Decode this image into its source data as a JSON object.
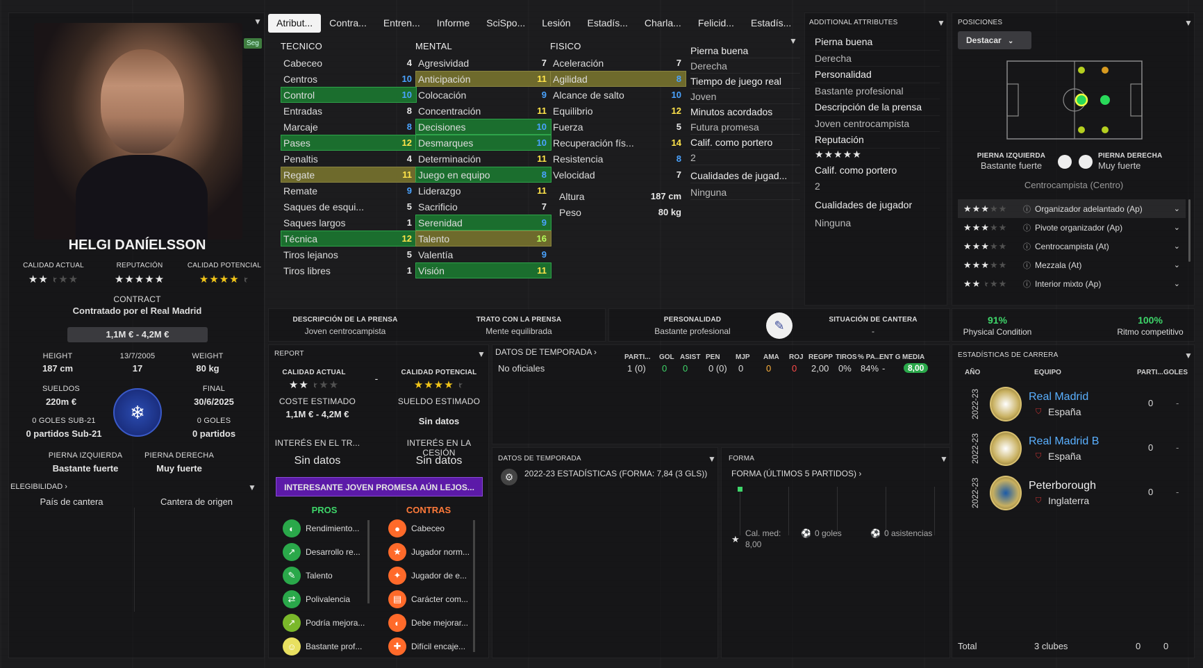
{
  "player": {
    "name": "HELGI DANÍELSSON",
    "tag": "Seg",
    "labels": {
      "current": "CALIDAD ACTUAL",
      "reputation": "REPUTACIÓN",
      "potential": "CALIDAD POTENCIAL"
    },
    "current_ability_stars": 2.5,
    "reputation_stars": 5,
    "potential_ability_stars": 4.5,
    "contract_label": "CONTRACT",
    "contract_text": "Contratado por el Real Madrid",
    "value": "1,1M € - 4,2M €",
    "height_label": "HEIGHT",
    "height": "187 cm",
    "dob_label": "13/7/2005",
    "age": "17",
    "weight_label": "WEIGHT",
    "weight": "80 kg",
    "wage_label": "SUELDOS",
    "wage": "220m €",
    "end_label": "FINAL",
    "end": "30/6/2025",
    "u21_goals": "0 GOLES SUB-21",
    "u21_apps": "0 partidos Sub-21",
    "goals": "0 GOLES",
    "apps": "0 partidos",
    "left_foot_label": "PIERNA IZQUIERDA",
    "left_foot": "Bastante fuerte",
    "right_foot_label": "PIERNA DERECHA",
    "right_foot": "Muy fuerte",
    "eligibility": "ELEGIBILIDAD",
    "eligibility_a": "País de cantera",
    "eligibility_b": "Cantera de origen"
  },
  "tabs": [
    "Atribut...",
    "Contra...",
    "Entren...",
    "Informe",
    "SciSpo...",
    "Lesión",
    "Estadís...",
    "Charla...",
    "Felicid...",
    "Estadís..."
  ],
  "attributes": {
    "tecnico": {
      "title": "TECNICO",
      "rows": [
        {
          "n": "Cabeceo",
          "v": "4",
          "h": "",
          "c": ""
        },
        {
          "n": "Centros",
          "v": "10",
          "h": "",
          "c": "b"
        },
        {
          "n": "Control",
          "v": "10",
          "h": "g",
          "c": "b"
        },
        {
          "n": "Entradas",
          "v": "8",
          "h": "",
          "c": ""
        },
        {
          "n": "Marcaje",
          "v": "8",
          "h": "",
          "c": "b"
        },
        {
          "n": "Pases",
          "v": "12",
          "h": "g",
          "c": "yy"
        },
        {
          "n": "Penaltis",
          "v": "4",
          "h": "",
          "c": ""
        },
        {
          "n": "Regate",
          "v": "11",
          "h": "y",
          "c": "yy"
        },
        {
          "n": "Remate",
          "v": "9",
          "h": "",
          "c": "b"
        },
        {
          "n": "Saques de esqui...",
          "v": "5",
          "h": "",
          "c": ""
        },
        {
          "n": "Saques largos",
          "v": "1",
          "h": "",
          "c": ""
        },
        {
          "n": "Técnica",
          "v": "12",
          "h": "g",
          "c": "yy"
        },
        {
          "n": "Tiros lejanos",
          "v": "5",
          "h": "",
          "c": ""
        },
        {
          "n": "Tiros libres",
          "v": "1",
          "h": "",
          "c": ""
        }
      ]
    },
    "mental": {
      "title": "MENTAL",
      "rows": [
        {
          "n": "Agresividad",
          "v": "7",
          "h": "",
          "c": ""
        },
        {
          "n": "Anticipación",
          "v": "11",
          "h": "y",
          "c": "yy"
        },
        {
          "n": "Colocación",
          "v": "9",
          "h": "",
          "c": "b"
        },
        {
          "n": "Concentración",
          "v": "11",
          "h": "",
          "c": "yy"
        },
        {
          "n": "Decisiones",
          "v": "10",
          "h": "g",
          "c": "b"
        },
        {
          "n": "Desmarques",
          "v": "10",
          "h": "g",
          "c": "b"
        },
        {
          "n": "Determinación",
          "v": "11",
          "h": "",
          "c": "yy"
        },
        {
          "n": "Juego en equipo",
          "v": "8",
          "h": "g",
          "c": "b"
        },
        {
          "n": "Liderazgo",
          "v": "11",
          "h": "",
          "c": "yy"
        },
        {
          "n": "Sacrificio",
          "v": "7",
          "h": "",
          "c": ""
        },
        {
          "n": "Serenidad",
          "v": "9",
          "h": "g",
          "c": "b"
        },
        {
          "n": "Talento",
          "v": "16",
          "h": "y",
          "c": "gg"
        },
        {
          "n": "Valentía",
          "v": "9",
          "h": "",
          "c": "b"
        },
        {
          "n": "Visión",
          "v": "11",
          "h": "g",
          "c": "yy"
        }
      ]
    },
    "fisico": {
      "title": "FISICO",
      "rows": [
        {
          "n": "Aceleración",
          "v": "7",
          "h": "",
          "c": ""
        },
        {
          "n": "Agilidad",
          "v": "8",
          "h": "y",
          "c": "b"
        },
        {
          "n": "Alcance de salto",
          "v": "10",
          "h": "",
          "c": "b"
        },
        {
          "n": "Equilibrio",
          "v": "12",
          "h": "",
          "c": "yy"
        },
        {
          "n": "Fuerza",
          "v": "5",
          "h": "",
          "c": ""
        },
        {
          "n": "Recuperación fís...",
          "v": "14",
          "h": "",
          "c": "yy"
        },
        {
          "n": "Resistencia",
          "v": "8",
          "h": "",
          "c": "b"
        },
        {
          "n": "Velocidad",
          "v": "7",
          "h": "",
          "c": ""
        }
      ]
    },
    "height_label": "Altura",
    "height": "187 cm",
    "weight_label": "Peso",
    "weight": "80 kg"
  },
  "side_info": {
    "items": [
      "Pierna buena",
      "Derecha",
      "Tiempo de juego real",
      "Joven",
      "Minutos acordados",
      "Futura promesa",
      "Calif. como portero",
      "2",
      "Cualidades de jugad...",
      "Ninguna"
    ]
  },
  "additional": {
    "title": "ADDITIONAL ATTRIBUTES",
    "items": [
      "Pierna buena",
      "Derecha",
      "Personalidad",
      "Bastante profesional",
      "Descripción de la prensa",
      "Joven centrocampista",
      "Reputación"
    ],
    "rep_stars": 5,
    "items2": [
      "Calif. como portero",
      "2",
      "Cualidades de jugador",
      "Ninguna"
    ]
  },
  "positions": {
    "title": "POSICIONES",
    "button": "Destacar",
    "left_foot_label": "PIERNA IZQUIERDA",
    "left_foot": "Bastante fuerte",
    "right_foot_label": "PIERNA DERECHA",
    "right_foot": "Muy fuerte",
    "position": "Centrocampista (Centro)",
    "roles": [
      {
        "name": "Organizador adelantado (Ap)",
        "stars": 3
      },
      {
        "name": "Pivote organizador (Ap)",
        "stars": 3
      },
      {
        "name": "Centrocampista (At)",
        "stars": 3
      },
      {
        "name": "Mezzala (At)",
        "stars": 3
      },
      {
        "name": "Interior mixto (Ap)",
        "stars": 2.5
      }
    ]
  },
  "press": {
    "desc_label": "DESCRIPCIÓN DE LA PRENSA",
    "desc": "Joven centrocampista",
    "handling_label": "TRATO CON LA PRENSA",
    "handling": "Mente equilibrada",
    "personality_label": "PERSONALIDAD",
    "personality": "Bastante profesional",
    "youth_label": "SITUACIÓN DE CANTERA",
    "youth": "-"
  },
  "condition": {
    "pct": "91%",
    "label": "Physical Condition",
    "match_pct": "100%",
    "match_label": "Ritmo competitivo"
  },
  "report": {
    "title": "REPORT",
    "ca_label": "CALIDAD ACTUAL",
    "ca_stars": 2.5,
    "dash": "-",
    "pa_label": "CALIDAD POTENCIAL",
    "pa_stars": 4.5,
    "cost_label": "COSTE ESTIMADO",
    "cost": "1,1M € - 4,2M €",
    "wage_label": "SUELDO ESTIMADO",
    "wage": "Sin datos",
    "transfer_label": "INTERÉS EN EL TR...",
    "transfer": "Sin datos",
    "loan_label": "INTERÉS EN LA CESIÓN",
    "loan": "Sin datos",
    "banner": "INTERESANTE JOVEN PROMESA AÚN LEJOS...",
    "pros_label": "PROS",
    "cons_label": "CONTRAS",
    "pros": [
      "Rendimiento...",
      "Desarrollo re...",
      "Talento",
      "Polivalencia",
      "Podría mejora...",
      "Bastante prof..."
    ],
    "cons": [
      "Cabeceo",
      "Jugador norm...",
      "Jugador de e...",
      "Carácter com...",
      "Debe mejorar...",
      "Difícil encaje..."
    ]
  },
  "season_stats": {
    "title": "DATOS DE TEMPORADA",
    "headers": [
      "PARTI...",
      "GOL",
      "ASIST",
      "PEN",
      "MJP",
      "AMA",
      "ROJ",
      "REGPP",
      "TIROS",
      "% PA...",
      "ENT G",
      "MEDIA"
    ],
    "row_label": "No oficiales",
    "values": [
      "1 (0)",
      "0",
      "0",
      "0 (0)",
      "0",
      "0",
      "0",
      "2,00",
      "0%",
      "84%",
      "-",
      "8,00"
    ]
  },
  "season_box": {
    "title": "DATOS DE TEMPORADA",
    "text": "2022-23 ESTADÍSTICAS (FORMA: 7,84 (3 GLS))"
  },
  "form": {
    "title": "FORMA",
    "subtitle": "FORMA (ÚLTIMOS 5 PARTIDOS)",
    "avg_label": "Cal. med:",
    "avg": "8,00",
    "goals": "0 goles",
    "assists": "0 asistencias"
  },
  "career": {
    "title": "ESTADÍSTICAS DE CARRERA",
    "headers": {
      "year": "AÑO",
      "team": "EQUIPO",
      "apps": "PARTI...",
      "goals": "GOLES"
    },
    "rows": [
      {
        "year": "2022-23",
        "team": "Real Madrid",
        "country": "España",
        "apps": "0",
        "goals": "-"
      },
      {
        "year": "2022-23",
        "team": "Real Madrid B",
        "country": "España",
        "apps": "0",
        "goals": "-"
      },
      {
        "year": "2022-23",
        "team": "Peterborough",
        "country": "Inglaterra",
        "apps": "0",
        "goals": "-"
      }
    ],
    "total_label": "Total",
    "total_clubs": "3 clubes",
    "total_apps": "0",
    "total_goals": "0"
  }
}
